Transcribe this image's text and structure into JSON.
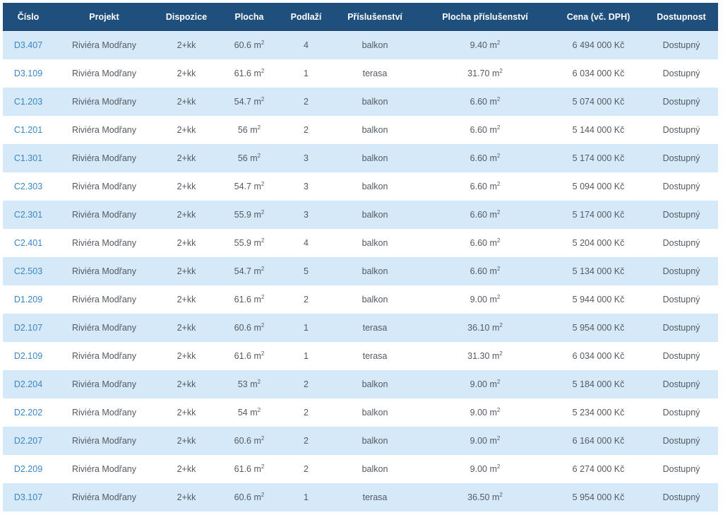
{
  "table": {
    "headers": [
      "Číslo",
      "Projekt",
      "Dispozice",
      "Plocha",
      "Podlaží",
      "Příslušenství",
      "Plocha příslušenství",
      "Cena (vč. DPH)",
      "Dostupnost"
    ],
    "area_unit": "m",
    "area_unit_sup": "2",
    "rows": [
      {
        "cislo": "D3.407",
        "projekt": "Riviéra Modřany",
        "dispozice": "2+kk",
        "plocha": "60.6",
        "podlazi": "4",
        "prislusenstvi": "balkon",
        "plocha_prislusenstvi": "9.40",
        "cena": "6 494 000 Kč",
        "dostupnost": "Dostupný"
      },
      {
        "cislo": "D3.109",
        "projekt": "Riviéra Modřany",
        "dispozice": "2+kk",
        "plocha": "61.6",
        "podlazi": "1",
        "prislusenstvi": "terasa",
        "plocha_prislusenstvi": "31.70",
        "cena": "6 034 000 Kč",
        "dostupnost": "Dostupný"
      },
      {
        "cislo": "C1.203",
        "projekt": "Riviéra Modřany",
        "dispozice": "2+kk",
        "plocha": "54.7",
        "podlazi": "2",
        "prislusenstvi": "balkon",
        "plocha_prislusenstvi": "6.60",
        "cena": "5 074 000 Kč",
        "dostupnost": "Dostupný"
      },
      {
        "cislo": "C1.201",
        "projekt": "Riviéra Modřany",
        "dispozice": "2+kk",
        "plocha": "56",
        "podlazi": "2",
        "prislusenstvi": "balkon",
        "plocha_prislusenstvi": "6.60",
        "cena": "5 144 000 Kč",
        "dostupnost": "Dostupný"
      },
      {
        "cislo": "C1.301",
        "projekt": "Riviéra Modřany",
        "dispozice": "2+kk",
        "plocha": "56",
        "podlazi": "3",
        "prislusenstvi": "balkon",
        "plocha_prislusenstvi": "6.60",
        "cena": "5 174 000 Kč",
        "dostupnost": "Dostupný"
      },
      {
        "cislo": "C2.303",
        "projekt": "Riviéra Modřany",
        "dispozice": "2+kk",
        "plocha": "54.7",
        "podlazi": "3",
        "prislusenstvi": "balkon",
        "plocha_prislusenstvi": "6.60",
        "cena": "5 094 000 Kč",
        "dostupnost": "Dostupný"
      },
      {
        "cislo": "C2.301",
        "projekt": "Riviéra Modřany",
        "dispozice": "2+kk",
        "plocha": "55.9",
        "podlazi": "3",
        "prislusenstvi": "balkon",
        "plocha_prislusenstvi": "6.60",
        "cena": "5 174 000 Kč",
        "dostupnost": "Dostupný"
      },
      {
        "cislo": "C2.401",
        "projekt": "Riviéra Modřany",
        "dispozice": "2+kk",
        "plocha": "55.9",
        "podlazi": "4",
        "prislusenstvi": "balkon",
        "plocha_prislusenstvi": "6.60",
        "cena": "5 204 000 Kč",
        "dostupnost": "Dostupný"
      },
      {
        "cislo": "C2.503",
        "projekt": "Riviéra Modřany",
        "dispozice": "2+kk",
        "plocha": "54.7",
        "podlazi": "5",
        "prislusenstvi": "balkon",
        "plocha_prislusenstvi": "6.60",
        "cena": "5 134 000 Kč",
        "dostupnost": "Dostupný"
      },
      {
        "cislo": "D1.209",
        "projekt": "Riviéra Modřany",
        "dispozice": "2+kk",
        "plocha": "61.6",
        "podlazi": "2",
        "prislusenstvi": "balkon",
        "plocha_prislusenstvi": "9.00",
        "cena": "5 944 000 Kč",
        "dostupnost": "Dostupný"
      },
      {
        "cislo": "D2.107",
        "projekt": "Riviéra Modřany",
        "dispozice": "2+kk",
        "plocha": "60.6",
        "podlazi": "1",
        "prislusenstvi": "terasa",
        "plocha_prislusenstvi": "36.10",
        "cena": "5 954 000 Kč",
        "dostupnost": "Dostupný"
      },
      {
        "cislo": "D2.109",
        "projekt": "Riviéra Modřany",
        "dispozice": "2+kk",
        "plocha": "61.6",
        "podlazi": "1",
        "prislusenstvi": "terasa",
        "plocha_prislusenstvi": "31.30",
        "cena": "6 034 000 Kč",
        "dostupnost": "Dostupný"
      },
      {
        "cislo": "D2.204",
        "projekt": "Riviéra Modřany",
        "dispozice": "2+kk",
        "plocha": "53",
        "podlazi": "2",
        "prislusenstvi": "balkon",
        "plocha_prislusenstvi": "9.00",
        "cena": "5 184 000 Kč",
        "dostupnost": "Dostupný"
      },
      {
        "cislo": "D2.202",
        "projekt": "Riviéra Modřany",
        "dispozice": "2+kk",
        "plocha": "54",
        "podlazi": "2",
        "prislusenstvi": "balkon",
        "plocha_prislusenstvi": "9.00",
        "cena": "5 234 000 Kč",
        "dostupnost": "Dostupný"
      },
      {
        "cislo": "D2.207",
        "projekt": "Riviéra Modřany",
        "dispozice": "2+kk",
        "plocha": "60.6",
        "podlazi": "2",
        "prislusenstvi": "balkon",
        "plocha_prislusenstvi": "9.00",
        "cena": "6 164 000 Kč",
        "dostupnost": "Dostupný"
      },
      {
        "cislo": "D2.209",
        "projekt": "Riviéra Modřany",
        "dispozice": "2+kk",
        "plocha": "61.6",
        "podlazi": "2",
        "prislusenstvi": "balkon",
        "plocha_prislusenstvi": "9.00",
        "cena": "6 274 000 Kč",
        "dostupnost": "Dostupný"
      },
      {
        "cislo": "D3.107",
        "projekt": "Riviéra Modřany",
        "dispozice": "2+kk",
        "plocha": "60.6",
        "podlazi": "1",
        "prislusenstvi": "terasa",
        "plocha_prislusenstvi": "36.50",
        "cena": "5 954 000 Kč",
        "dostupnost": "Dostupný"
      }
    ]
  },
  "colors": {
    "header_bg": "#1f4f7c",
    "row_alt_bg": "#d6e9f8",
    "link": "#3a86c8",
    "text": "#555a61"
  }
}
